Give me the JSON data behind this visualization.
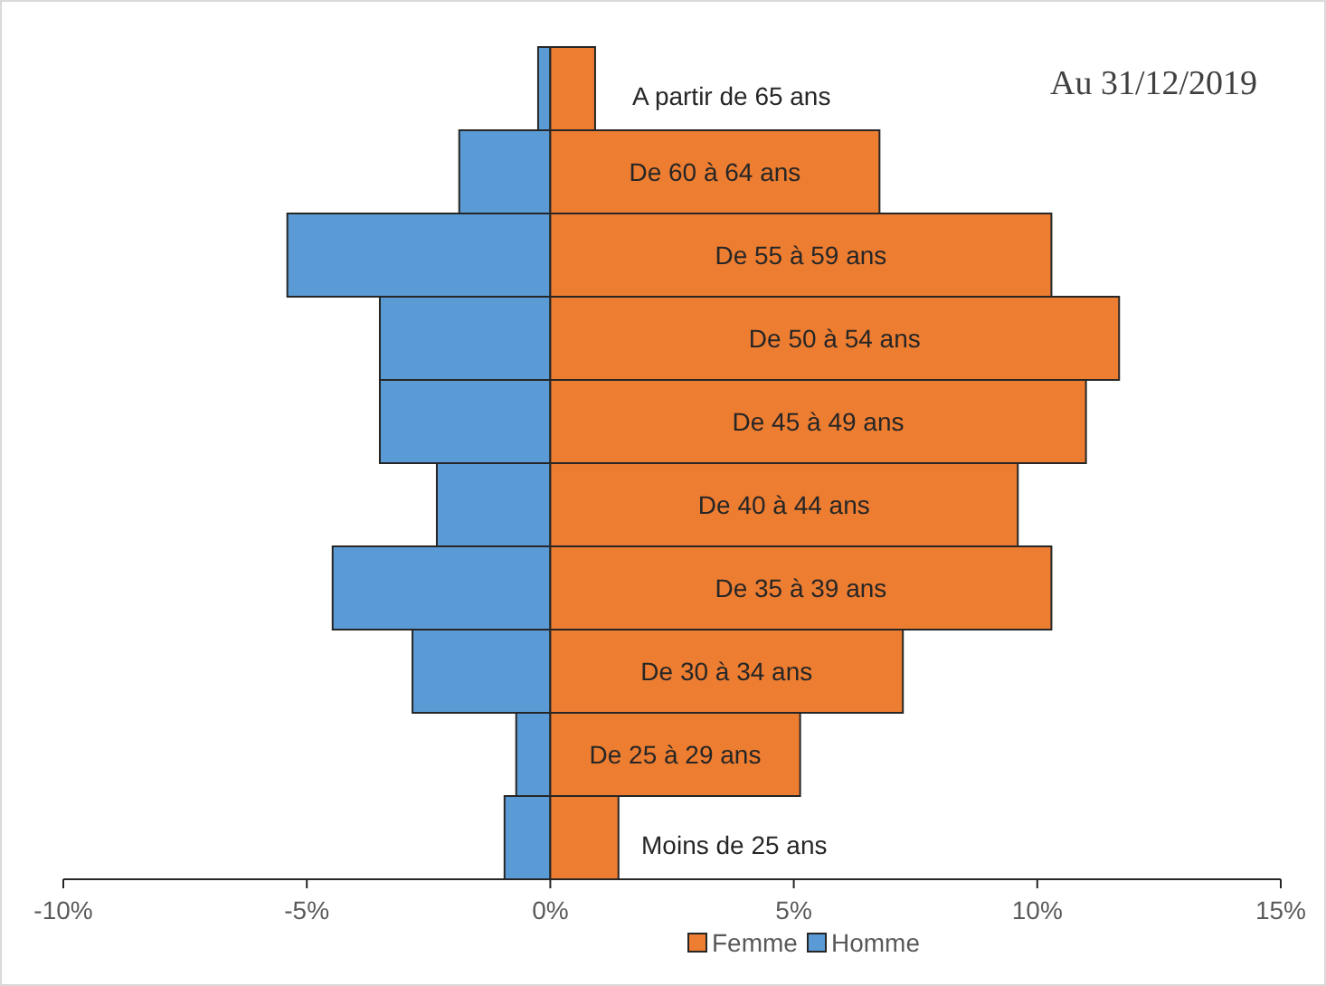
{
  "chart_data": {
    "type": "bar",
    "orientation": "horizontal",
    "stacked": true,
    "categories": [
      "A partir de 65 ans",
      "De 60 à 64 ans",
      "De 55 à 59 ans",
      "De 50 à 54 ans",
      "De 45 à 49 ans",
      "De 40 à 44 ans",
      "De 35 à 39 ans",
      "De 30 à 34 ans",
      "De 25 à 29 ans",
      "Moins de 25 ans"
    ],
    "series": [
      {
        "name": "Homme",
        "color": "#5b9bd5",
        "values": [
          -0.25,
          -1.87,
          -5.4,
          -3.5,
          -3.5,
          -2.33,
          -4.47,
          -2.83,
          -0.7,
          -0.94
        ]
      },
      {
        "name": "Femme",
        "color": "#ed7d31",
        "values": [
          0.92,
          6.76,
          10.29,
          11.68,
          11.0,
          9.6,
          10.29,
          7.24,
          5.13,
          1.4
        ]
      }
    ],
    "xlim": [
      -10,
      15
    ],
    "xticks": [
      {
        "value": -10,
        "label": "-10%"
      },
      {
        "value": -5,
        "label": "-5%"
      },
      {
        "value": 0,
        "label": "0%"
      },
      {
        "value": 5,
        "label": "5%"
      },
      {
        "value": 10,
        "label": "10%"
      },
      {
        "value": 15,
        "label": "15%"
      }
    ],
    "annotations": [
      "Au 31/12/2019"
    ],
    "legend": "bottom",
    "grid": false
  }
}
